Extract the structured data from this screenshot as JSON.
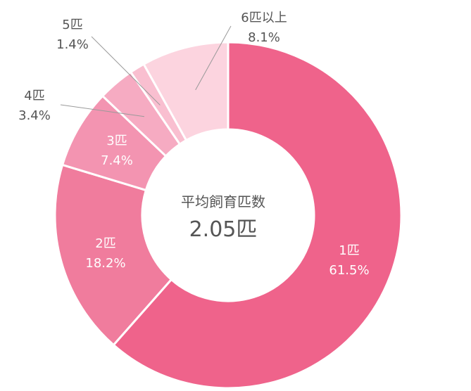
{
  "chart_data": {
    "type": "pie",
    "title": "",
    "center": {
      "title": "平均飼育匹数",
      "value": "2.05匹"
    },
    "slices": [
      {
        "label": "1匹",
        "value": 61.5,
        "text": "61.5%",
        "color": "#ef638b",
        "label_position": "inside"
      },
      {
        "label": "2匹",
        "value": 18.2,
        "text": "18.2%",
        "color": "#f07c9d",
        "label_position": "inside"
      },
      {
        "label": "3匹",
        "value": 7.4,
        "text": "7.4%",
        "color": "#f394b1",
        "label_position": "inside"
      },
      {
        "label": "4匹",
        "value": 3.4,
        "text": "3.4%",
        "color": "#f6abc2",
        "label_position": "outside"
      },
      {
        "label": "5匹",
        "value": 1.4,
        "text": "1.4%",
        "color": "#f9bfd0",
        "label_position": "outside"
      },
      {
        "label": "6匹以上",
        "value": 8.1,
        "text": "8.1%",
        "color": "#fcd4df",
        "label_position": "outside"
      }
    ]
  }
}
